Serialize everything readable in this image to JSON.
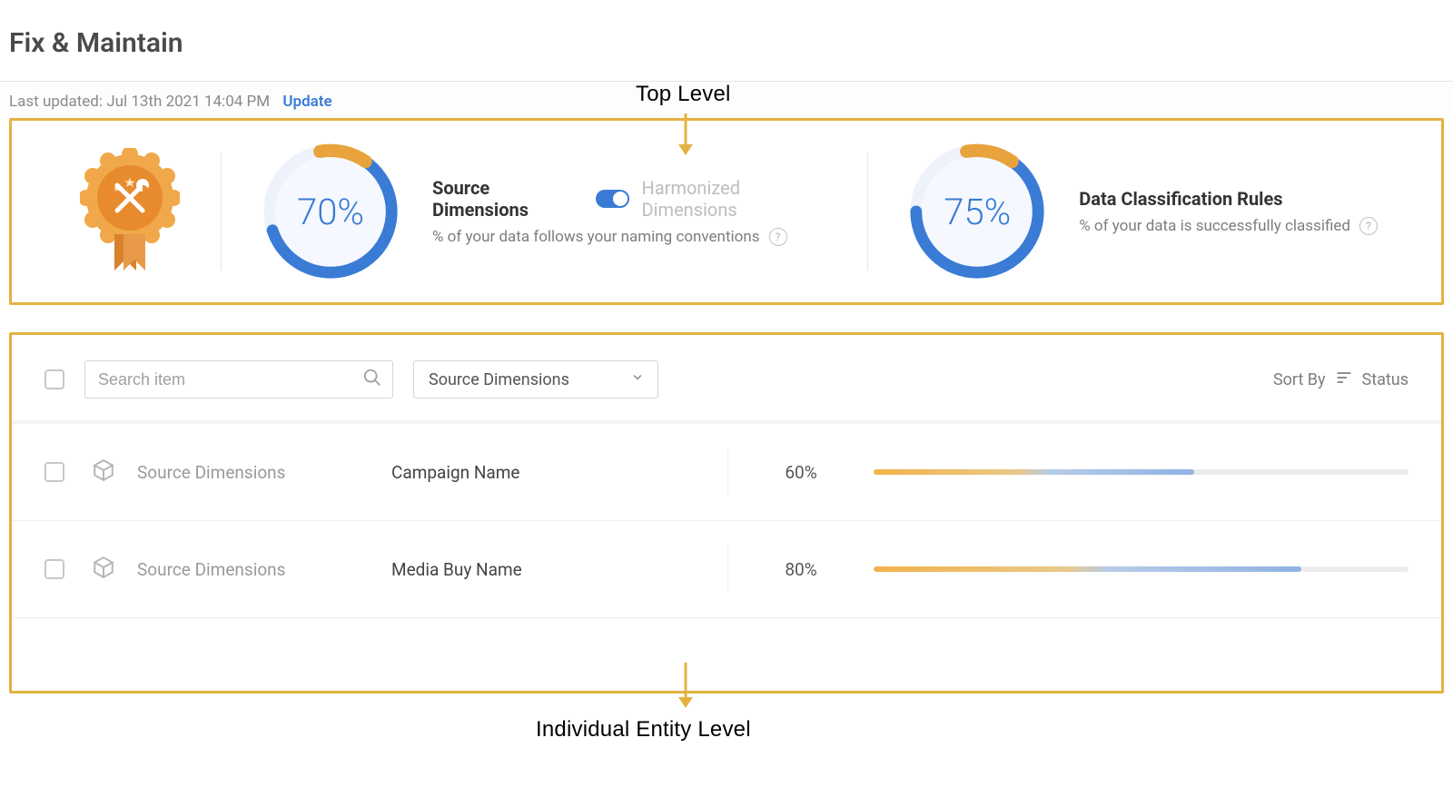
{
  "page": {
    "title": "Fix & Maintain",
    "last_updated_prefix": "Last updated: ",
    "last_updated_value": "Jul 13th 2021 14:04 PM",
    "update_link": "Update"
  },
  "annotations": {
    "top": "Top Level",
    "bottom": "Individual Entity Level"
  },
  "colors": {
    "highlight_border": "#e3b341",
    "accent_blue": "#3a7bd5",
    "donut_track": "#eef3fb",
    "donut_highlight": "#e8a33d",
    "donut_bg": "#f5f9ff",
    "text_muted": "#7d7d7d",
    "bar_track": "#ececec",
    "bar_orange_start": "#f2b24a",
    "bar_orange_end": "#e8c98a",
    "bar_blue_start": "#b7cbe9",
    "bar_blue_end": "#8fb3e2"
  },
  "top_metrics": {
    "source": {
      "percent": 70,
      "label": "Source Dimensions",
      "alt_label": "Harmonized Dimensions",
      "subtext": "% of your data follows your naming conventions",
      "display": "70%"
    },
    "classification": {
      "percent": 75,
      "label": "Data Classification Rules",
      "subtext": "% of your data is successfully classified",
      "display": "75%"
    }
  },
  "list": {
    "search_placeholder": "Search item",
    "dropdown_value": "Source Dimensions",
    "sort_by_label": "Sort By",
    "sort_by_value": "Status",
    "rows": [
      {
        "category": "Source Dimensions",
        "name": "Campaign Name",
        "percent": 60,
        "display": "60%"
      },
      {
        "category": "Source Dimensions",
        "name": "Media Buy Name",
        "percent": 80,
        "display": "80%"
      }
    ]
  }
}
